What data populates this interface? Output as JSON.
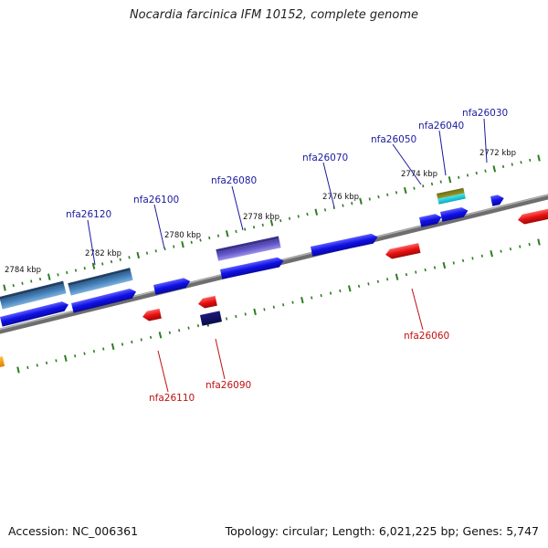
{
  "title": "Nocardia farcinica IFM 10152, complete genome",
  "accession": "Accession: NC_006361",
  "summary": "Topology: circular; Length: 6,021,225 bp; Genes: 5,747",
  "colors": {
    "backbone": "#808080",
    "tick": "#2e7d22",
    "forward_label": "#1a1aa0",
    "reverse_label": "#c01010",
    "forward_gene": "#1010e6",
    "reverse_gene": "#e61010"
  },
  "kbp_labels": [
    "2784 kbp",
    "2782 kbp",
    "2780 kbp",
    "2778 kbp",
    "2776 kbp",
    "2774 kbp",
    "2772 kbp"
  ],
  "forward_gene_labels": [
    "nfa26120",
    "nfa26100",
    "nfa26080",
    "nfa26070",
    "nfa26050",
    "nfa26040",
    "nfa26030"
  ],
  "reverse_gene_labels": [
    "nfa26110",
    "nfa26090",
    "nfa26060"
  ]
}
